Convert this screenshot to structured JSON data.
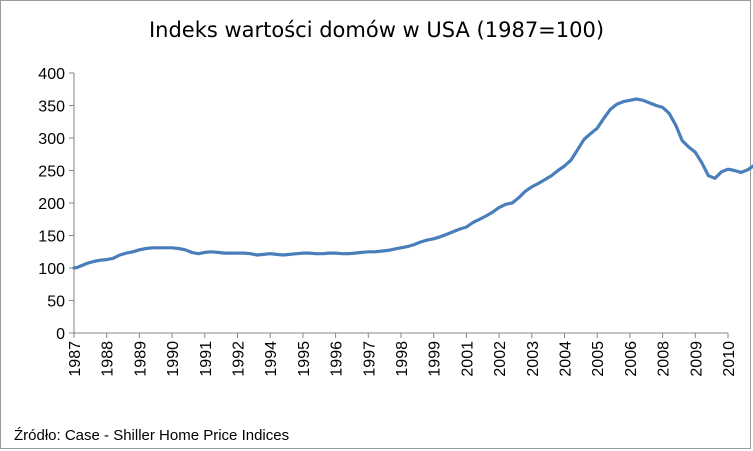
{
  "chart_data": {
    "type": "line",
    "title": "Indeks wartości domów  w USA (1987=100)",
    "xlabel": "",
    "ylabel": "",
    "ylim": [
      0,
      400
    ],
    "yticks": [
      "0",
      "50",
      "100",
      "150",
      "200",
      "250",
      "300",
      "350",
      "400"
    ],
    "xtick_labels": [
      {
        "label": "1987",
        "x": 1987.0
      },
      {
        "label": "1988",
        "x": 1988.0
      },
      {
        "label": "1989",
        "x": 1989.0
      },
      {
        "label": "1990",
        "x": 1990.0
      },
      {
        "label": "1991",
        "x": 1991.0
      },
      {
        "label": "1992",
        "x": 1992.0
      },
      {
        "label": "1994",
        "x": 1993.0
      },
      {
        "label": "1995",
        "x": 1994.0
      },
      {
        "label": "1996",
        "x": 1995.0
      },
      {
        "label": "1997",
        "x": 1996.0
      },
      {
        "label": "1998",
        "x": 1997.0
      },
      {
        "label": "1999",
        "x": 1998.0
      },
      {
        "label": "2001",
        "x": 1999.0
      },
      {
        "label": "2002",
        "x": 2000.0
      },
      {
        "label": "2003",
        "x": 2001.0
      },
      {
        "label": "2004",
        "x": 2002.0
      },
      {
        "label": "2005",
        "x": 2003.0
      },
      {
        "label": "2006",
        "x": 2004.0
      },
      {
        "label": "2008",
        "x": 2005.0
      },
      {
        "label": "2009",
        "x": 2006.0
      },
      {
        "label": "2010",
        "x": 2007.0
      }
    ],
    "grid": false,
    "legend": "none",
    "series": [
      {
        "color": "#4a7ebb",
        "points": [
          [
            1987.0,
            100
          ],
          [
            1987.1,
            101
          ],
          [
            1987.25,
            104
          ],
          [
            1987.4,
            107
          ],
          [
            1987.6,
            110
          ],
          [
            1987.8,
            112
          ],
          [
            1988.0,
            113
          ],
          [
            1988.2,
            115
          ],
          [
            1988.4,
            120
          ],
          [
            1988.6,
            123
          ],
          [
            1988.8,
            125
          ],
          [
            1989.0,
            128
          ],
          [
            1989.2,
            130
          ],
          [
            1989.4,
            131
          ],
          [
            1989.6,
            131
          ],
          [
            1989.8,
            131
          ],
          [
            1990.0,
            131
          ],
          [
            1990.2,
            130
          ],
          [
            1990.4,
            128
          ],
          [
            1990.6,
            124
          ],
          [
            1990.8,
            122
          ],
          [
            1991.0,
            124
          ],
          [
            1991.2,
            125
          ],
          [
            1991.4,
            124
          ],
          [
            1991.6,
            123
          ],
          [
            1992.0,
            123
          ],
          [
            1992.2,
            123
          ],
          [
            1992.4,
            122
          ],
          [
            1992.6,
            120
          ],
          [
            1992.8,
            121
          ],
          [
            1993.0,
            122
          ],
          [
            1993.2,
            121
          ],
          [
            1993.4,
            120
          ],
          [
            1993.6,
            121
          ],
          [
            1993.8,
            122
          ],
          [
            1994.0,
            123
          ],
          [
            1994.2,
            123
          ],
          [
            1994.4,
            122
          ],
          [
            1994.6,
            122
          ],
          [
            1994.8,
            123
          ],
          [
            1995.0,
            123
          ],
          [
            1995.2,
            122
          ],
          [
            1995.4,
            122
          ],
          [
            1995.6,
            123
          ],
          [
            1995.8,
            124
          ],
          [
            1996.0,
            125
          ],
          [
            1996.2,
            125
          ],
          [
            1996.4,
            126
          ],
          [
            1996.6,
            127
          ],
          [
            1996.8,
            129
          ],
          [
            1997.0,
            131
          ],
          [
            1997.2,
            133
          ],
          [
            1997.4,
            136
          ],
          [
            1997.6,
            140
          ],
          [
            1997.8,
            143
          ],
          [
            1998.0,
            145
          ],
          [
            1998.2,
            148
          ],
          [
            1998.4,
            152
          ],
          [
            1998.6,
            156
          ],
          [
            1998.8,
            160
          ],
          [
            1999.0,
            163
          ],
          [
            1999.2,
            170
          ],
          [
            1999.4,
            175
          ],
          [
            1999.6,
            180
          ],
          [
            1999.8,
            186
          ],
          [
            2000.0,
            193
          ],
          [
            2000.2,
            198
          ],
          [
            2000.4,
            200
          ],
          [
            2000.6,
            208
          ],
          [
            2000.8,
            218
          ],
          [
            2001.0,
            225
          ],
          [
            2001.2,
            230
          ],
          [
            2001.4,
            236
          ],
          [
            2001.6,
            242
          ],
          [
            2001.8,
            250
          ],
          [
            2002.0,
            257
          ],
          [
            2002.2,
            266
          ],
          [
            2002.4,
            282
          ],
          [
            2002.6,
            298
          ],
          [
            2002.8,
            307
          ],
          [
            2003.0,
            315
          ],
          [
            2003.2,
            330
          ],
          [
            2003.4,
            344
          ],
          [
            2003.6,
            352
          ],
          [
            2003.8,
            356
          ],
          [
            2004.0,
            358
          ],
          [
            2004.2,
            360
          ],
          [
            2004.4,
            358
          ],
          [
            2004.6,
            354
          ],
          [
            2004.8,
            350
          ],
          [
            2005.0,
            347
          ],
          [
            2005.2,
            338
          ],
          [
            2005.4,
            320
          ],
          [
            2005.6,
            296
          ],
          [
            2005.8,
            286
          ],
          [
            2006.0,
            278
          ],
          [
            2006.2,
            262
          ],
          [
            2006.4,
            242
          ],
          [
            2006.6,
            238
          ],
          [
            2006.8,
            248
          ],
          [
            2007.0,
            252
          ],
          [
            2007.2,
            250
          ],
          [
            2007.4,
            247
          ],
          [
            2007.6,
            251
          ],
          [
            2007.8,
            258
          ]
        ]
      }
    ]
  },
  "source_note": "Źródło: Case - Shiller Home Price Indices"
}
